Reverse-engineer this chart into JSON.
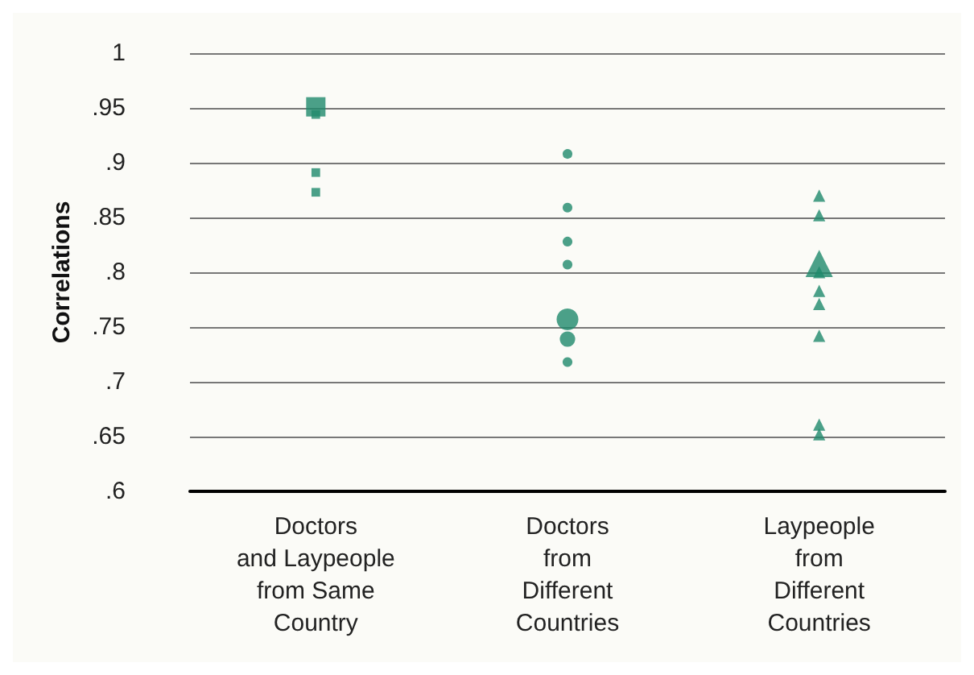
{
  "chart_data": {
    "type": "scatter",
    "ylabel": "Correlations",
    "categories": [
      "Doctors\nand Laypeople\nfrom Same\nCountry",
      "Doctors\nfrom\nDifferent\nCountries",
      "Laypeople\nfrom\nDifferent\nCountries"
    ],
    "series": [
      {
        "color": "#1f8a6c",
        "marker": "square",
        "x": [
          "Doctors\nand Laypeople\nfrom Same\nCountry",
          "Doctors\nand Laypeople\nfrom Same\nCountry",
          "Doctors\nand Laypeople\nfrom Same\nCountry",
          "Doctors\nand Laypeople\nfrom Same\nCountry"
        ],
        "values": [
          0.951,
          0.944,
          0.891,
          0.873
        ],
        "sizes": [
          1,
          0.2,
          0.2,
          0.2
        ]
      },
      {
        "color": "#1f8a6c",
        "marker": "circle",
        "x": [
          "Doctors\nfrom\nDifferent\nCountries",
          "Doctors\nfrom\nDifferent\nCountries",
          "Doctors\nfrom\nDifferent\nCountries",
          "Doctors\nfrom\nDifferent\nCountries",
          "Doctors\nfrom\nDifferent\nCountries",
          "Doctors\nfrom\nDifferent\nCountries",
          "Doctors\nfrom\nDifferent\nCountries"
        ],
        "values": [
          0.908,
          0.859,
          0.828,
          0.807,
          0.757,
          0.739,
          0.718
        ],
        "sizes": [
          0.2,
          0.2,
          0.2,
          0.2,
          1,
          0.5,
          0.2
        ]
      },
      {
        "color": "#1f8a6c",
        "marker": "triangle",
        "x": [
          "Laypeople\nfrom\nDifferent\nCountries",
          "Laypeople\nfrom\nDifferent\nCountries",
          "Laypeople\nfrom\nDifferent\nCountries",
          "Laypeople\nfrom\nDifferent\nCountries",
          "Laypeople\nfrom\nDifferent\nCountries",
          "Laypeople\nfrom\nDifferent\nCountries",
          "Laypeople\nfrom\nDifferent\nCountries",
          "Laypeople\nfrom\nDifferent\nCountries",
          "Laypeople\nfrom\nDifferent\nCountries"
        ],
        "values": [
          0.87,
          0.852,
          0.808,
          0.8,
          0.783,
          0.771,
          0.742,
          0.661,
          0.652
        ],
        "sizes": [
          0.2,
          0.2,
          1,
          0.2,
          0.2,
          0.2,
          0.2,
          0.2,
          0.2
        ]
      }
    ],
    "ylim": [
      0.6,
      1
    ],
    "yticks": [
      {
        "value": 0.6,
        "label": ".6"
      },
      {
        "value": 0.65,
        "label": ".65"
      },
      {
        "value": 0.7,
        "label": ".7"
      },
      {
        "value": 0.75,
        "label": ".75"
      },
      {
        "value": 0.8,
        "label": ".8"
      },
      {
        "value": 0.85,
        "label": ".85"
      },
      {
        "value": 0.9,
        "label": ".9"
      },
      {
        "value": 0.95,
        "label": ".95"
      },
      1
    ],
    "grid": "y"
  }
}
